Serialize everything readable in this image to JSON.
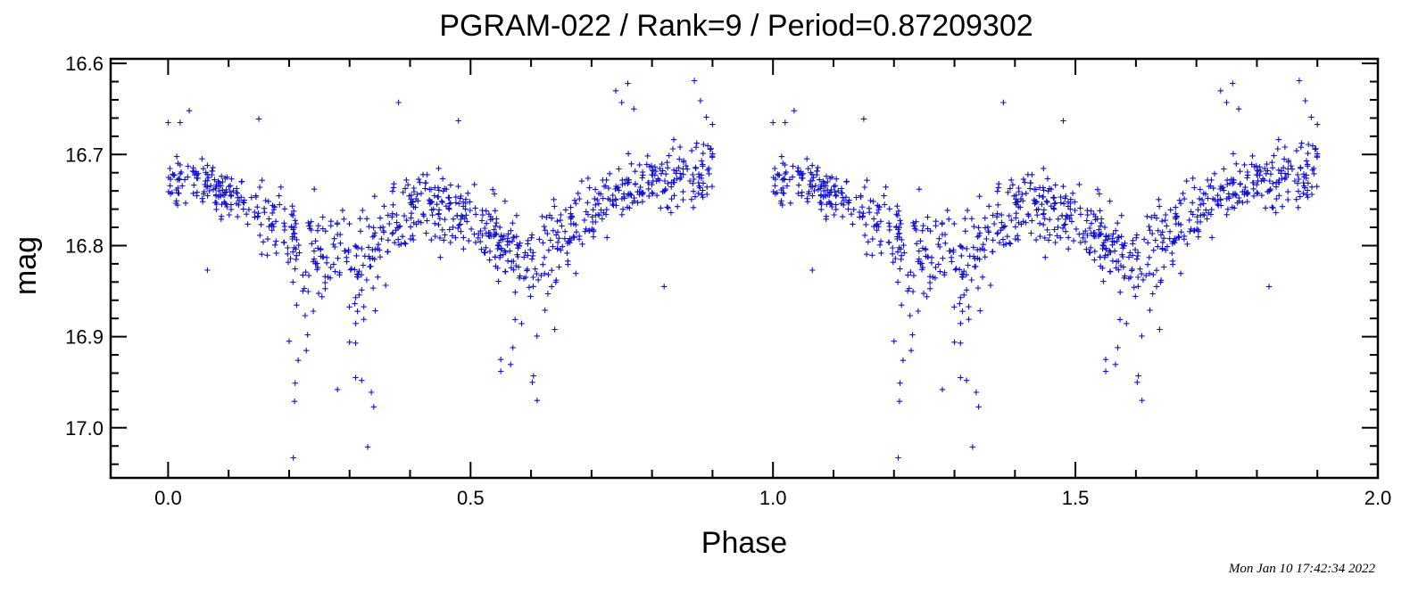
{
  "chart_data": {
    "type": "scatter",
    "title": "PGRAM-022 / Rank=9 / Period=0.87209302",
    "xlabel": "Phase",
    "ylabel": "mag",
    "xlim": [
      -0.095,
      2.0
    ],
    "ylim": [
      17.055,
      16.595
    ],
    "y_inverted": true,
    "xticks": [
      "0.0",
      "0.5",
      "1.0",
      "1.5",
      "2.0"
    ],
    "yticks": [
      "16.6",
      "16.7",
      "16.8",
      "16.9",
      "17.0"
    ],
    "grid": false,
    "marker": "plus",
    "color": "#1010d0",
    "phase_fold_repeat": 1.0,
    "outliers": [
      [
        0.207,
        17.033
      ],
      [
        0.33,
        17.021
      ],
      [
        0.209,
        16.971
      ],
      [
        0.34,
        16.977
      ],
      [
        0.21,
        16.951
      ],
      [
        0.336,
        16.961
      ],
      [
        0.28,
        16.958
      ],
      [
        0.31,
        16.945
      ],
      [
        0.32,
        16.948
      ],
      [
        0.61,
        16.97
      ],
      [
        0.604,
        16.943
      ],
      [
        0.55,
        16.938
      ],
      [
        0.76,
        16.622
      ],
      [
        0.87,
        16.619
      ],
      [
        0.74,
        16.63
      ],
      [
        0.75,
        16.643
      ],
      [
        0.77,
        16.65
      ],
      [
        0.88,
        16.641
      ],
      [
        0.381,
        16.643
      ],
      [
        0.15,
        16.661
      ],
      [
        0.035,
        16.652
      ],
      [
        0.02,
        16.665
      ],
      [
        0.0,
        16.665
      ],
      [
        0.48,
        16.663
      ],
      [
        0.89,
        16.659
      ],
      [
        0.9,
        16.667
      ],
      [
        0.82,
        16.845
      ],
      [
        0.065,
        16.827
      ],
      [
        0.2,
        16.905
      ],
      [
        0.215,
        16.926
      ],
      [
        0.3,
        16.906
      ],
      [
        0.31,
        16.907
      ],
      [
        0.57,
        16.912
      ],
      [
        0.55,
        16.925
      ]
    ],
    "dips": [
      {
        "center": 0.22,
        "depth": 0.1
      },
      {
        "center": 0.33,
        "depth": 0.08
      },
      {
        "center": 0.57,
        "depth": 0.1
      },
      {
        "center": 0.62,
        "depth": 0.09
      }
    ]
  },
  "footer": {
    "timestamp": "Mon Jan 10 17:42:34 2022"
  }
}
